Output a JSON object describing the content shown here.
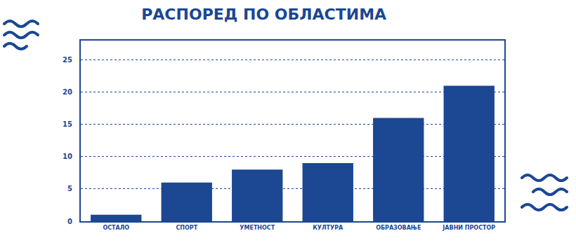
{
  "chart_data": {
    "type": "bar",
    "title": "РАСПОРЕД ПО ОБЛАСТИМА",
    "categories": [
      "ОСТАЛО",
      "СПОРТ",
      "УМЕТНОСТ",
      "КУЛТУРА",
      "ОБРАЗОВАЊЕ",
      "ЈАВНИ ПРОСТОР"
    ],
    "values": [
      1,
      6,
      8,
      9,
      16,
      21
    ],
    "color": "#1b4793",
    "ylim": [
      0,
      28
    ],
    "yticks": [
      0,
      5,
      10,
      15,
      20,
      25
    ],
    "grid": true
  }
}
